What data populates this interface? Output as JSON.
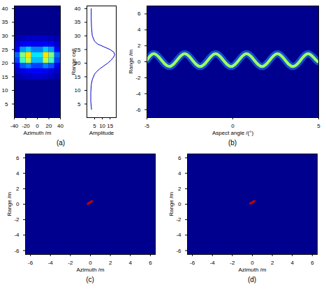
{
  "chart_data": [
    {
      "type": "heatmap",
      "x_label": "Azimuth /m",
      "caption": "(a)",
      "xlim": [
        -40,
        40
      ],
      "xticks": [
        -40,
        -20,
        0,
        20,
        40
      ],
      "ylim": [
        0,
        41
      ],
      "yticks": [
        5,
        10,
        15,
        20,
        25,
        30,
        35,
        40
      ],
      "x_edges": [
        -40,
        -30,
        -20,
        -10,
        0,
        10,
        20,
        30,
        40
      ],
      "y_edges": [
        14,
        16,
        18,
        20,
        22,
        24,
        26,
        28,
        30
      ],
      "clim": [
        0,
        1
      ],
      "cells": [
        [
          0.05,
          0.08,
          0.1,
          0.12,
          0.12,
          0.1,
          0.08,
          0.05
        ],
        [
          0.1,
          0.15,
          0.18,
          0.2,
          0.2,
          0.18,
          0.15,
          0.1
        ],
        [
          0.18,
          0.27,
          0.3,
          0.25,
          0.25,
          0.3,
          0.27,
          0.18
        ],
        [
          0.25,
          0.45,
          0.55,
          0.35,
          0.35,
          0.55,
          0.45,
          0.25
        ],
        [
          0.28,
          0.5,
          0.62,
          0.38,
          0.38,
          0.62,
          0.5,
          0.28
        ],
        [
          0.2,
          0.32,
          0.36,
          0.3,
          0.3,
          0.36,
          0.32,
          0.2
        ],
        [
          0.12,
          0.18,
          0.2,
          0.18,
          0.18,
          0.2,
          0.18,
          0.12
        ],
        [
          0.05,
          0.08,
          0.1,
          0.1,
          0.1,
          0.1,
          0.08,
          0.05
        ]
      ]
    },
    {
      "type": "line",
      "x_label": "Amplitude",
      "y_label": "Range cell",
      "color": "#0000cc",
      "xlim": [
        0,
        19
      ],
      "xticks": [
        5,
        10,
        15
      ],
      "ylim": [
        0,
        41
      ],
      "yticks": [
        5,
        10,
        15,
        20,
        25,
        30,
        35,
        40
      ],
      "x": [
        3,
        2.5,
        2.5,
        2.8,
        3.5,
        5,
        6.5,
        8.5,
        11,
        13.5,
        15.5,
        17,
        18,
        17.5,
        15,
        11,
        7,
        5,
        3.5,
        3,
        2.8,
        2.8
      ],
      "y": [
        3,
        6,
        9,
        12,
        14,
        16,
        17,
        18,
        19,
        20,
        21,
        22,
        23,
        24,
        25,
        26,
        27,
        28,
        30,
        33,
        36,
        40
      ]
    },
    {
      "type": "ridge",
      "x_label": "Aspect angle /(°)",
      "y_label": "Range /m",
      "caption": "(b)",
      "color": "#a0ff60",
      "xlim": [
        -5,
        5
      ],
      "xticks": [
        -5,
        0,
        5
      ],
      "ylim": [
        -7,
        7
      ],
      "yticks": [
        -6,
        -4,
        -2,
        0,
        2,
        4,
        6
      ],
      "x": [
        -5,
        -4.6,
        -4.15,
        -3.7,
        -3.25,
        -2.8,
        -2.35,
        -1.9,
        -1.45,
        -1,
        -0.55,
        -0.1,
        0.35,
        0.8,
        1.25,
        1.7,
        2.15,
        2.6,
        3.05,
        3.5,
        3.95,
        4.4,
        4.85,
        5
      ],
      "y": [
        0.2,
        1,
        0.2,
        -0.6,
        0.2,
        1,
        0.2,
        -0.6,
        0.2,
        1,
        0.2,
        -0.6,
        0.2,
        1,
        0.2,
        -0.6,
        0.2,
        1,
        0.2,
        -0.6,
        0.2,
        1,
        0.2,
        0
      ]
    },
    {
      "type": "scatter",
      "x_label": "Azimuth /m",
      "y_label": "Range /m",
      "caption": "(c)",
      "color": "#cc0000",
      "xlim": [
        -6.5,
        6.5
      ],
      "xticks": [
        -6,
        -4,
        -2,
        0,
        2,
        4,
        6
      ],
      "ylim": [
        -6.5,
        6.5
      ],
      "yticks": [
        -6,
        -4,
        -2,
        0,
        2,
        4,
        6
      ],
      "x": [
        -0.25,
        -0.15,
        -0.05,
        0.05,
        0.15
      ],
      "y": [
        0.05,
        0.15,
        0.22,
        0.3,
        0.38
      ]
    },
    {
      "type": "scatter",
      "x_label": "Azimuth /m",
      "y_label": "Range /m",
      "caption": "(d)",
      "color": "#cc0000",
      "xlim": [
        -6.5,
        6.5
      ],
      "xticks": [
        -6,
        -4,
        -2,
        0,
        2,
        4,
        6
      ],
      "ylim": [
        -6.5,
        6.5
      ],
      "yticks": [
        -6,
        -4,
        -2,
        0,
        2,
        4,
        6
      ],
      "x": [
        -0.2,
        -0.1,
        0,
        0.1,
        0.2
      ],
      "y": [
        0.1,
        0.18,
        0.25,
        0.32,
        0.4
      ]
    }
  ]
}
